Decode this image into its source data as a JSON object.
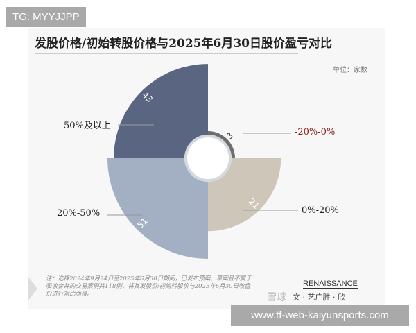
{
  "watermark_tag": "TG: MYYJJPP",
  "watermark_url": "www.tf-web-kaiyunsports.com",
  "title": "发股价格/初始转股价格与2025年6月30日股价盈亏对比",
  "unit": "单位：家数",
  "note": "注：选择2024年9月24日至2025年6月30日期间，已发布预案、草案且不属于吸收合并的交易案例共118例，将其发股价/初始转股价与2025年6月30日收盘价进行对比而得。",
  "brand": "RENAISSANCE",
  "brand_sub": "文 · 艺广胜 · 欣",
  "platform_watermark": "雪球",
  "chart_data": {
    "type": "pie",
    "variant": "rose (nightingale), equal-angle quadrants, radius by value",
    "title": "发股价格/初始转股价格与2025年6月30日股价盈亏对比",
    "unit": "单位：家数",
    "categories": [
      "-20%-0%",
      "0%-20%",
      "20%-50%",
      "50%及以上"
    ],
    "values": [
      3,
      21,
      51,
      43
    ],
    "colors": [
      "#6e6e70",
      "#cfc6ba",
      "#a3afc2",
      "#5a6681"
    ],
    "label_colors": [
      "#8b1a1a",
      "#222222",
      "#222222",
      "#222222"
    ]
  }
}
